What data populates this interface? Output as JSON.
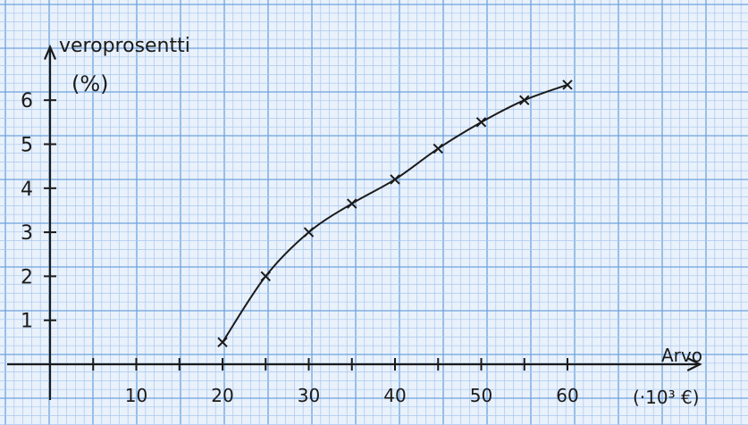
{
  "chart_data": {
    "type": "line",
    "title": "",
    "ylabel": "veroprosentti",
    "yunit": "(%)",
    "xlabel": "Arvo",
    "xunit": "(·10³ €)",
    "xlim": [
      0,
      65
    ],
    "ylim": [
      0,
      6.5
    ],
    "x_ticks": [
      5,
      10,
      15,
      20,
      25,
      30,
      35,
      40,
      45,
      50,
      55,
      60
    ],
    "x_tick_labels": [
      {
        "x": 10,
        "label": "10"
      },
      {
        "x": 20,
        "label": "20"
      },
      {
        "x": 30,
        "label": "30"
      },
      {
        "x": 40,
        "label": "40"
      },
      {
        "x": 50,
        "label": "50"
      },
      {
        "x": 60,
        "label": "60"
      }
    ],
    "y_ticks": [
      1,
      2,
      3,
      4,
      5,
      6
    ],
    "y_tick_labels": [
      "1",
      "2",
      "3",
      "4",
      "5",
      "6"
    ],
    "grid": true,
    "colors": {
      "grid_minor": "#a9c8ee",
      "grid_major": "#6fa2dc",
      "ink": "#1a1a1a",
      "paper": "#e9f1fb"
    },
    "series": [
      {
        "x": [
          20,
          25,
          30,
          35,
          40,
          45,
          50,
          55,
          60
        ],
        "y": [
          0.5,
          2.0,
          3.0,
          3.65,
          4.2,
          4.9,
          5.5,
          6.0,
          6.35
        ]
      }
    ]
  }
}
